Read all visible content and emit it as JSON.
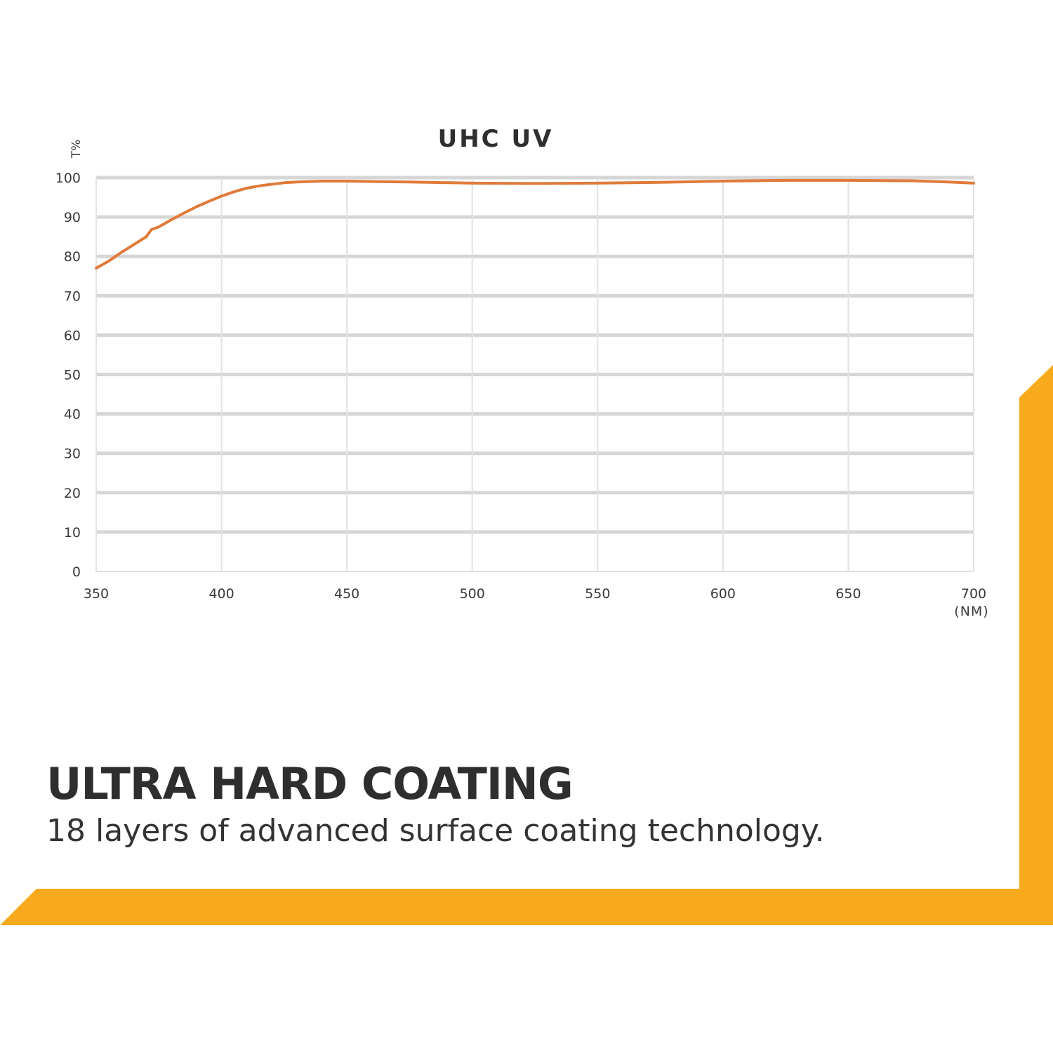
{
  "chart_data": {
    "type": "line",
    "title": "UHC UV",
    "ylabel": "T%",
    "xunit": "(NM)",
    "xlim": [
      350,
      700
    ],
    "ylim": [
      0,
      100
    ],
    "x_ticks": [
      350,
      400,
      450,
      500,
      550,
      600,
      650,
      700
    ],
    "y_ticks": [
      0,
      10,
      20,
      30,
      40,
      50,
      60,
      70,
      80,
      90,
      100
    ],
    "grid": true,
    "series": [
      {
        "color": "#e07a3a",
        "x": [
          350,
          355,
          360,
          365,
          370,
          372,
          375,
          380,
          385,
          390,
          395,
          400,
          405,
          410,
          415,
          420,
          425,
          430,
          440,
          450,
          460,
          475,
          500,
          525,
          550,
          575,
          600,
          625,
          650,
          675,
          690,
          700
        ],
        "y": [
          77,
          78.8,
          81,
          83,
          85,
          86.8,
          87.5,
          89.3,
          91,
          92.6,
          94,
          95.3,
          96.4,
          97.3,
          97.9,
          98.3,
          98.7,
          98.9,
          99.1,
          99.1,
          99,
          98.9,
          98.6,
          98.5,
          98.6,
          98.8,
          99.1,
          99.3,
          99.3,
          99.2,
          98.9,
          98.6
        ]
      }
    ]
  },
  "headline": "ULTRA HARD COATING",
  "subline": "18 layers of advanced surface coating technology.",
  "colors": {
    "accent": "#f7ab1c",
    "line": "#e07a3a",
    "grid": "#d6d6d6"
  }
}
